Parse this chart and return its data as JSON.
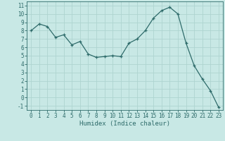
{
  "x": [
    0,
    1,
    2,
    3,
    4,
    5,
    6,
    7,
    8,
    9,
    10,
    11,
    12,
    13,
    14,
    15,
    16,
    17,
    18,
    19,
    20,
    21,
    22,
    23
  ],
  "y": [
    8.0,
    8.8,
    8.5,
    7.2,
    7.5,
    6.3,
    6.7,
    5.2,
    4.8,
    4.9,
    5.0,
    4.9,
    6.5,
    7.0,
    8.0,
    9.5,
    10.4,
    10.8,
    10.0,
    6.5,
    3.8,
    2.2,
    0.8,
    -1.2
  ],
  "line_color": "#2e6b6a",
  "marker": "+",
  "bg_color": "#c8e8e5",
  "grid_color": "#aed4d0",
  "xlabel": "Humidex (Indice chaleur)",
  "xlim": [
    -0.5,
    23.5
  ],
  "ylim": [
    -1.5,
    11.5
  ],
  "yticks": [
    -1,
    0,
    1,
    2,
    3,
    4,
    5,
    6,
    7,
    8,
    9,
    10,
    11
  ],
  "xticks": [
    0,
    1,
    2,
    3,
    4,
    5,
    6,
    7,
    8,
    9,
    10,
    11,
    12,
    13,
    14,
    15,
    16,
    17,
    18,
    19,
    20,
    21,
    22,
    23
  ],
  "tick_fontsize": 5.5,
  "xlabel_fontsize": 6.5
}
